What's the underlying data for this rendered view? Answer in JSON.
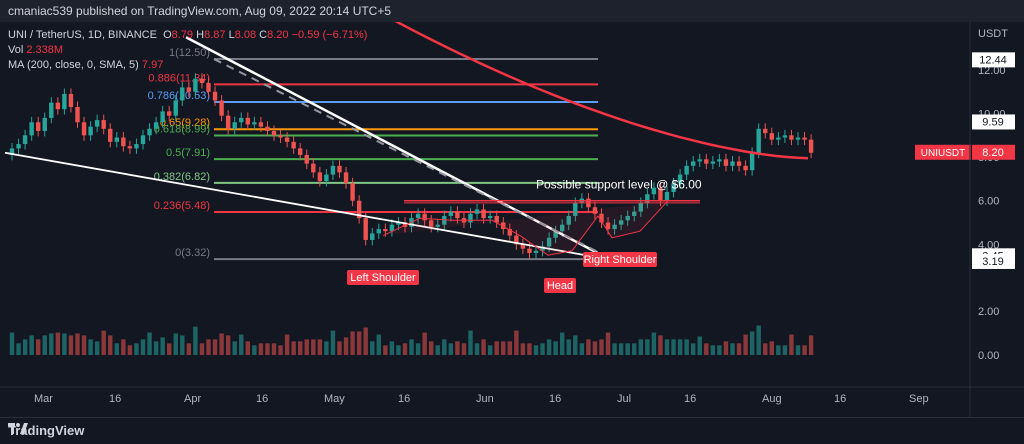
{
  "header": {
    "published": "cmaniac539 published on TradingView.com, Aug 09, 2022 20:14 UTC+5"
  },
  "legend": {
    "symbol": "UNI / TetherUS, 1D, BINANCE",
    "ohlc": {
      "o_label": "O",
      "o": "8.79",
      "h_label": "H",
      "h": "8.87",
      "l_label": "L",
      "l": "8.08",
      "c_label": "C",
      "c": "8.20",
      "chg": "−0.59 (−6.71%)"
    },
    "vol_label": "Vol",
    "vol": "2.338M",
    "ma_label": "MA (200, close, 0, SMA, 5)",
    "ma": "7.97"
  },
  "footer": {
    "brand": "TradingView"
  },
  "colors": {
    "bull": "#26a69a",
    "bear": "#ef5350",
    "ma": "#f23645",
    "bg": "#131722"
  },
  "chart_data": {
    "type": "candlestick",
    "currency": "USDT",
    "price_axis": {
      "ticks": [
        "12.00",
        "10.00",
        "8.00",
        "6.00",
        "4.00",
        "2.00",
        "0.00"
      ],
      "ylim": [
        0,
        13
      ]
    },
    "price_labels": [
      {
        "value": 12.44,
        "text": "12.44",
        "style": "white"
      },
      {
        "value": 9.59,
        "text": "9.59",
        "style": "white"
      },
      {
        "value": 8.2,
        "text": "8.20",
        "style": "red",
        "name": "UNIUSDT"
      },
      {
        "value": 3.45,
        "text": "3.45",
        "style": "white"
      },
      {
        "value": 3.19,
        "text": "3.19",
        "style": "white"
      }
    ],
    "time_axis": [
      "Mar",
      "16",
      "Apr",
      "16",
      "May",
      "16",
      "Jun",
      "16",
      "Jul",
      "16",
      "Aug",
      "16",
      "Sep"
    ],
    "fibonacci": [
      {
        "ratio": "1",
        "price": "12.50",
        "value": 12.5,
        "color": "#787b86"
      },
      {
        "ratio": "0.886",
        "price": "11.34",
        "value": 11.34,
        "color": "#f23645"
      },
      {
        "ratio": "0.786",
        "price": "10.53",
        "value": 10.53,
        "color": "#5b9cf6"
      },
      {
        "ratio": "0.65",
        "price": "9.28",
        "value": 9.28,
        "color": "#ff9800"
      },
      {
        "ratio": "0.618",
        "price": "8.99",
        "value": 8.99,
        "color": "#4caf50"
      },
      {
        "ratio": "0.5",
        "price": "7.91",
        "value": 7.91,
        "color": "#4caf50"
      },
      {
        "ratio": "0.382",
        "price": "6.82",
        "value": 6.82,
        "color": "#81c784"
      },
      {
        "ratio": "0.236",
        "price": "5.48",
        "value": 5.48,
        "color": "#f23645"
      },
      {
        "ratio": "0",
        "price": "3.32",
        "value": 3.32,
        "color": "#787b86"
      }
    ],
    "annotations": {
      "support": "Possible support level @ $6.00",
      "left_shoulder": "Left Shoulder",
      "head": "Head",
      "right_shoulder": "Right Shoulder"
    },
    "closes": [
      8.4,
      8.6,
      9.0,
      9.6,
      9.2,
      9.8,
      10.5,
      10.2,
      10.9,
      10.3,
      9.6,
      9.0,
      9.4,
      9.7,
      9.3,
      8.7,
      8.9,
      8.5,
      8.4,
      8.6,
      9.0,
      9.3,
      9.6,
      10.1,
      9.9,
      10.6,
      11.2,
      11.0,
      11.6,
      11.4,
      11.0,
      10.6,
      9.9,
      9.3,
      9.6,
      9.8,
      9.5,
      9.6,
      9.4,
      9.2,
      9.0,
      8.9,
      8.7,
      8.4,
      8.1,
      7.7,
      7.3,
      6.9,
      7.2,
      7.6,
      7.3,
      6.8,
      6.0,
      5.2,
      4.2,
      4.5,
      4.7,
      4.6,
      4.9,
      5.0,
      4.8,
      5.2,
      5.4,
      5.1,
      4.8,
      4.9,
      5.3,
      5.5,
      5.2,
      5.0,
      5.4,
      5.6,
      5.2,
      5.3,
      5.0,
      4.7,
      4.4,
      4.0,
      3.8,
      3.6,
      3.7,
      3.9,
      4.3,
      4.6,
      4.9,
      5.3,
      5.9,
      6.1,
      5.7,
      5.4,
      5.0,
      4.7,
      4.9,
      5.1,
      5.3,
      5.5,
      5.9,
      6.3,
      6.6,
      6.0,
      6.4,
      6.8,
      7.2,
      7.6,
      7.8,
      7.9,
      7.7,
      7.8,
      7.9,
      7.6,
      7.8,
      7.6,
      7.4,
      8.2,
      9.3,
      9.1,
      8.8,
      8.9,
      9.0,
      8.8,
      8.9,
      8.8,
      8.2
    ],
    "volume_axis": {
      "ticks": [
        "2.00",
        "0.00"
      ],
      "ylim": [
        0,
        3
      ]
    }
  }
}
